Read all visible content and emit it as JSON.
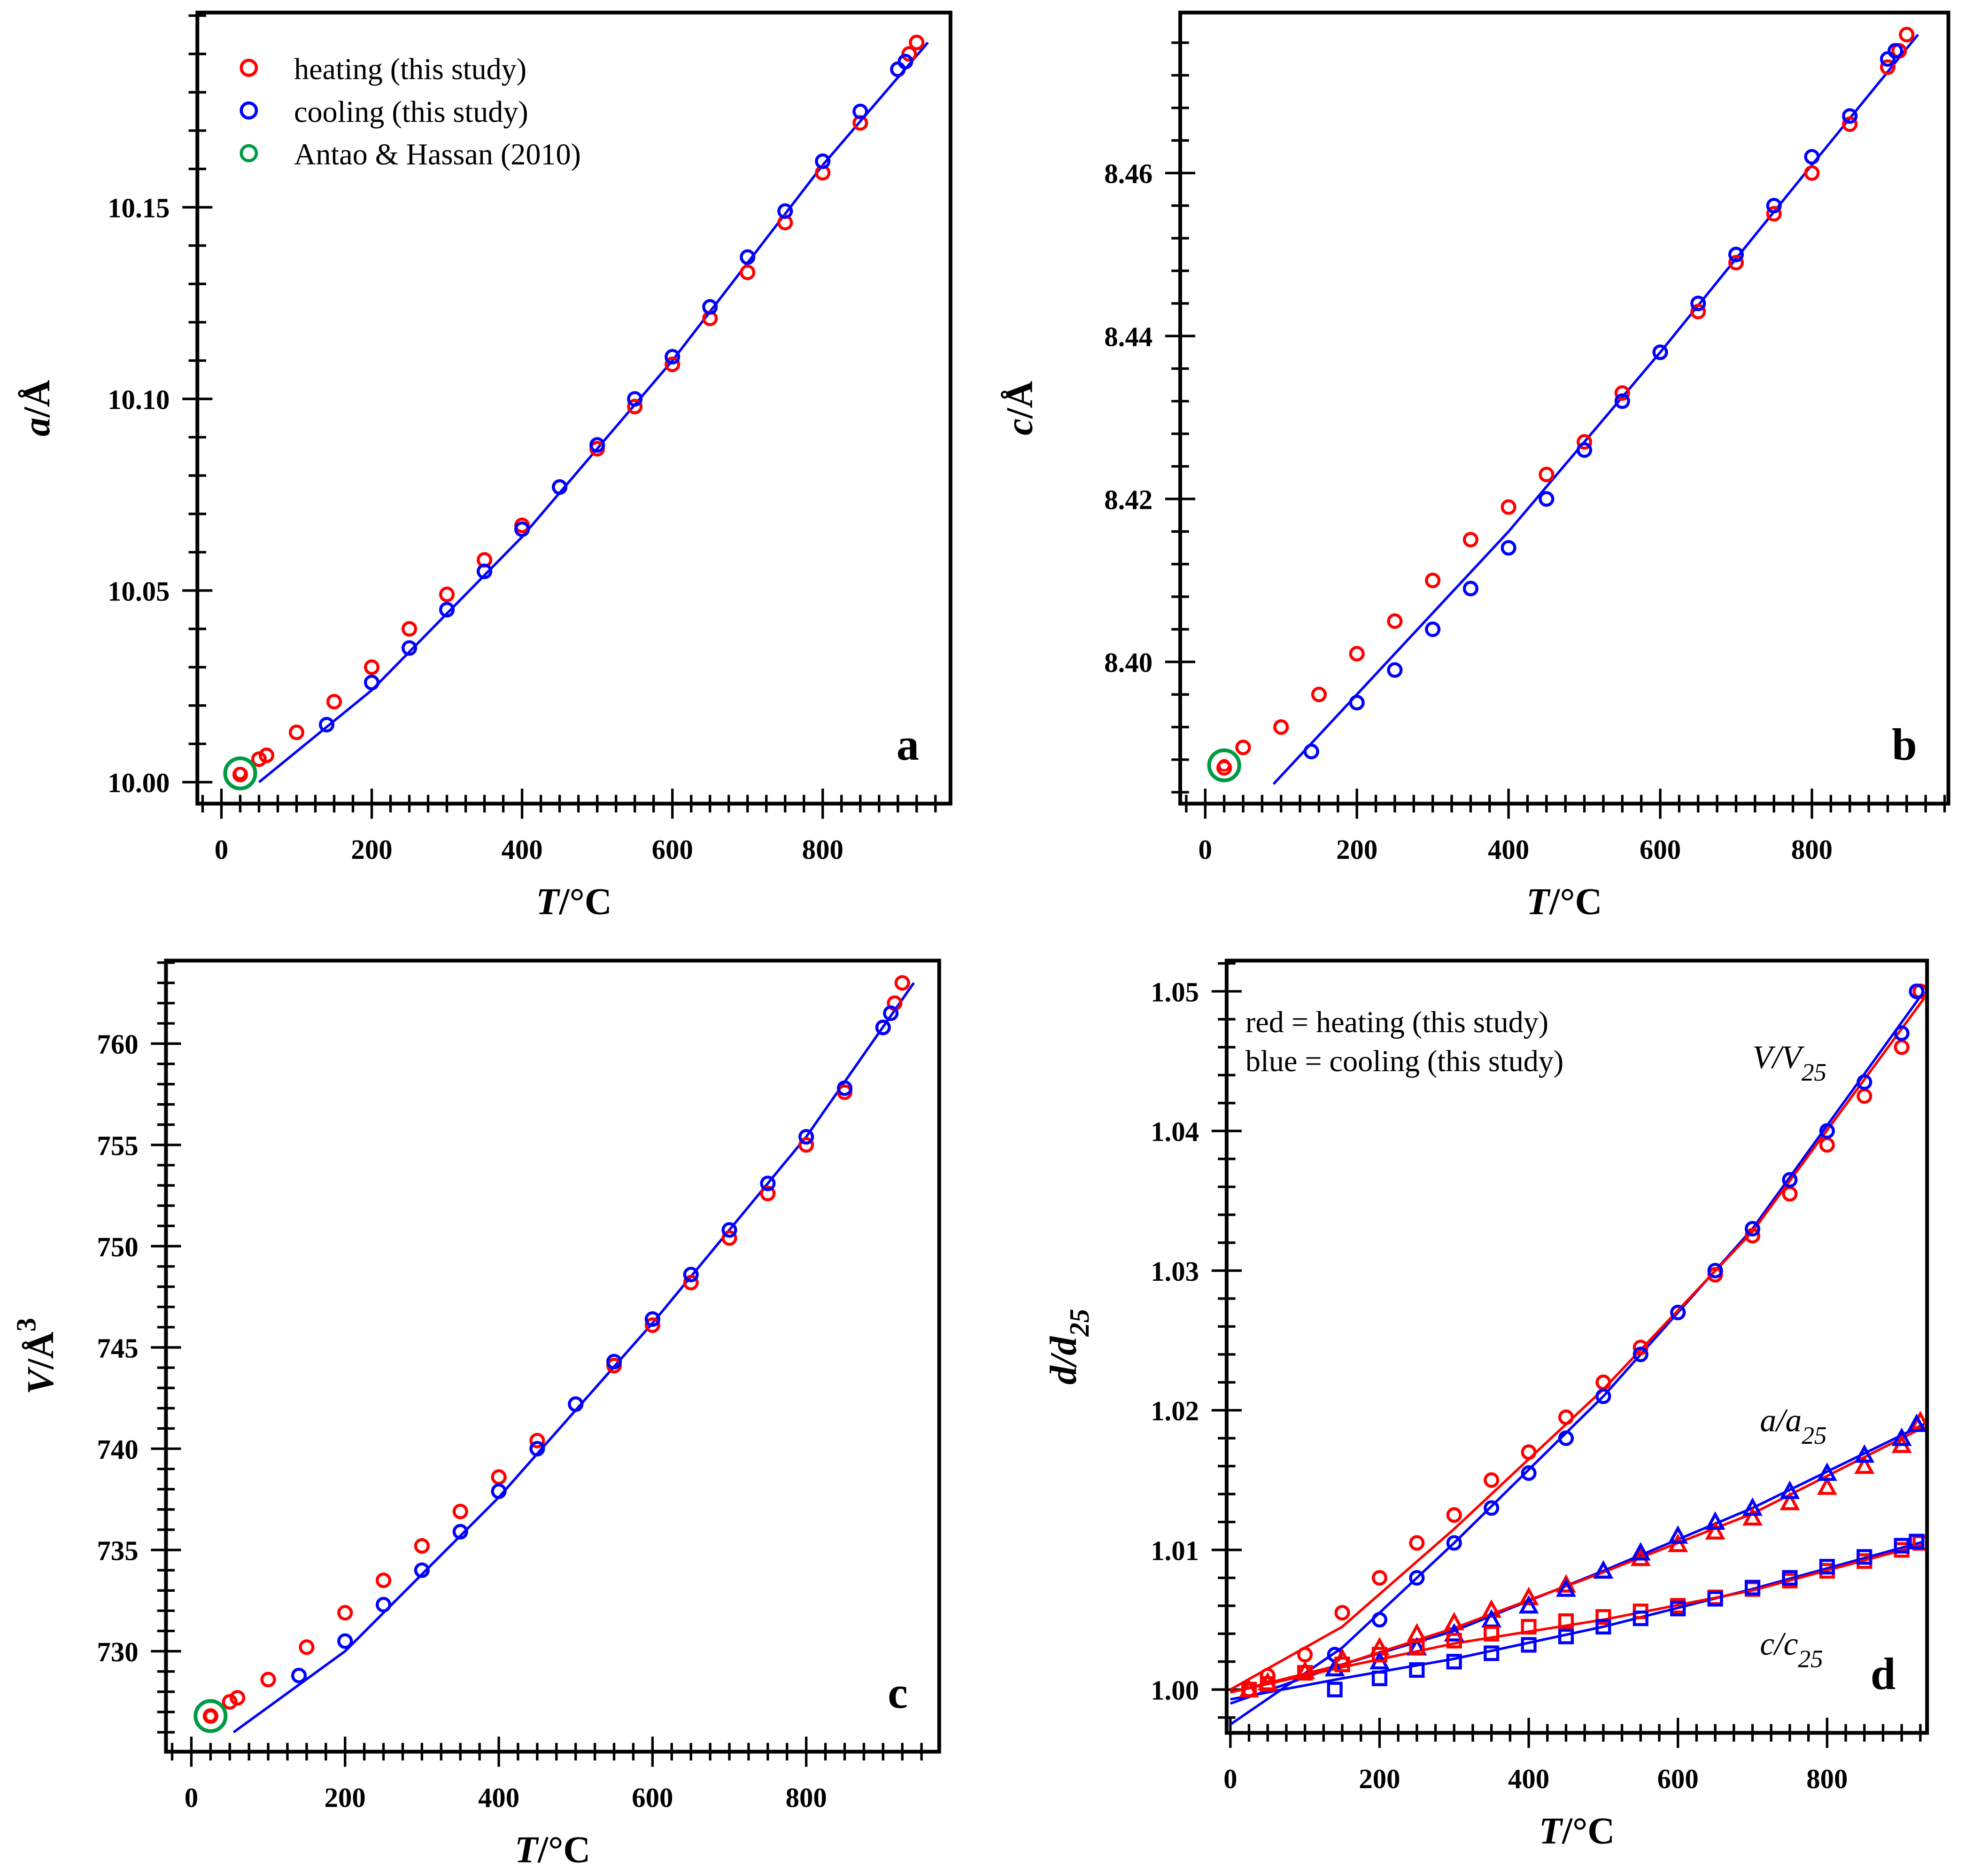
{
  "chart_data": [
    {
      "type": "scatter",
      "panel_label": "b_placeholder_removed",
      "letter": "a",
      "xlabel": {
        "var": "T",
        "unit": "/°C"
      },
      "ylabel": {
        "var": "a",
        "unit": "/Å",
        "sup": "",
        "sub": ""
      },
      "xlim": [
        -32,
        970
      ],
      "ylim": [
        9.9944,
        10.2008
      ],
      "xticks": [
        0,
        200,
        400,
        600,
        800
      ],
      "xtick_labels": [
        "0",
        "200",
        "400",
        "600",
        "800"
      ],
      "xminor": 25,
      "yticks": [
        10.0,
        10.05,
        10.1,
        10.15
      ],
      "ytick_labels": [
        "10.00",
        "10.05",
        "10.10",
        "10.15"
      ],
      "yminor": 0.01,
      "legend": {
        "placement": "top-left",
        "entries": [
          "heating (this study)",
          "cooling (this study)",
          "Antao & Hassan (2010)"
        ]
      },
      "series": [
        {
          "name": "heating (this study)",
          "color": "#ff0000",
          "marker": "circle",
          "x": [
            25,
            50,
            60,
            100,
            150,
            200,
            250,
            300,
            350,
            400,
            450,
            500,
            550,
            600,
            650,
            700,
            750,
            800,
            850,
            900,
            915,
            925
          ],
          "y": [
            10.002,
            10.006,
            10.007,
            10.013,
            10.021,
            10.03,
            10.04,
            10.049,
            10.058,
            10.067,
            10.077,
            10.087,
            10.098,
            10.109,
            10.121,
            10.133,
            10.146,
            10.159,
            10.172,
            10.186,
            10.19,
            10.193
          ]
        },
        {
          "name": "cooling (this study)",
          "color": "#0000ff",
          "marker": "circle",
          "x": [
            140,
            200,
            250,
            300,
            350,
            400,
            450,
            500,
            550,
            600,
            650,
            700,
            750,
            800,
            850,
            900,
            910
          ],
          "y": [
            10.015,
            10.026,
            10.035,
            10.045,
            10.055,
            10.066,
            10.077,
            10.088,
            10.1,
            10.111,
            10.124,
            10.137,
            10.149,
            10.162,
            10.175,
            10.186,
            10.188
          ]
        },
        {
          "name": "Antao & Hassan (2010)",
          "color": "#009a44",
          "marker": "big-circle",
          "x": [
            25
          ],
          "y": [
            10.0023
          ]
        }
      ],
      "fit": {
        "color": "#0000ff",
        "x": [
          50,
          200,
          400,
          600,
          800,
          940
        ],
        "y": [
          10.0,
          10.024,
          10.064,
          10.11,
          10.161,
          10.193
        ]
      }
    },
    {
      "type": "scatter",
      "letter": "b",
      "xlabel": {
        "var": "T",
        "unit": "/°C"
      },
      "ylabel": {
        "var": "c",
        "unit": "/Å",
        "sup": "",
        "sub": ""
      },
      "xlim": [
        -33,
        980
      ],
      "ylim": [
        8.3826,
        8.4797
      ],
      "xticks": [
        0,
        200,
        400,
        600,
        800
      ],
      "xtick_labels": [
        "0",
        "200",
        "400",
        "600",
        "800"
      ],
      "xminor": 25,
      "yticks": [
        8.4,
        8.42,
        8.44,
        8.46
      ],
      "ytick_labels": [
        "8.40",
        "8.42",
        "8.44",
        "8.46"
      ],
      "yminor": 0.004,
      "series": [
        {
          "name": "heating (this study)",
          "color": "#ff0000",
          "marker": "circle",
          "x": [
            25,
            50,
            100,
            150,
            200,
            250,
            300,
            350,
            400,
            450,
            500,
            550,
            600,
            650,
            700,
            750,
            800,
            850,
            900,
            915,
            925
          ],
          "y": [
            8.387,
            8.3895,
            8.392,
            8.396,
            8.401,
            8.405,
            8.41,
            8.415,
            8.419,
            8.423,
            8.427,
            8.433,
            8.438,
            8.443,
            8.449,
            8.455,
            8.46,
            8.466,
            8.473,
            8.475,
            8.477
          ]
        },
        {
          "name": "cooling (this study)",
          "color": "#0000ff",
          "marker": "circle",
          "x": [
            140,
            200,
            250,
            300,
            350,
            400,
            450,
            500,
            550,
            600,
            650,
            700,
            750,
            800,
            850,
            900,
            910
          ],
          "y": [
            8.389,
            8.395,
            8.399,
            8.404,
            8.409,
            8.414,
            8.42,
            8.426,
            8.432,
            8.438,
            8.444,
            8.45,
            8.456,
            8.462,
            8.467,
            8.474,
            8.475
          ]
        },
        {
          "name": "Antao & Hassan (2010)",
          "color": "#009a44",
          "marker": "big-circle",
          "x": [
            25
          ],
          "y": [
            8.3873
          ]
        }
      ],
      "fit": {
        "color": "#0000ff",
        "x": [
          90,
          200,
          400,
          600,
          800,
          940
        ],
        "y": [
          8.385,
          8.396,
          8.416,
          8.438,
          8.461,
          8.477
        ]
      }
    },
    {
      "type": "scatter",
      "letter": "c",
      "xlabel": {
        "var": "T",
        "unit": "/°C"
      },
      "ylabel": {
        "var": "V",
        "unit": "/Å",
        "sup": "3",
        "sub": ""
      },
      "xlim": [
        -33,
        973
      ],
      "ylim": [
        725.04,
        764.1
      ],
      "xticks": [
        0,
        200,
        400,
        600,
        800
      ],
      "xtick_labels": [
        "0",
        "200",
        "400",
        "600",
        "800"
      ],
      "xminor": 25,
      "yticks": [
        730,
        735,
        740,
        745,
        750,
        755,
        760
      ],
      "ytick_labels": [
        "730",
        "735",
        "740",
        "745",
        "750",
        "755",
        "760"
      ],
      "yminor": 1,
      "series": [
        {
          "name": "heating (this study)",
          "color": "#ff0000",
          "marker": "circle",
          "x": [
            25,
            50,
            60,
            100,
            150,
            200,
            250,
            300,
            350,
            400,
            450,
            500,
            550,
            600,
            650,
            700,
            750,
            800,
            850,
            900,
            915,
            925
          ],
          "y": [
            726.8,
            727.5,
            727.7,
            728.6,
            730.2,
            731.9,
            733.5,
            735.2,
            736.9,
            738.6,
            740.4,
            742.2,
            744.1,
            746.1,
            748.2,
            750.4,
            752.6,
            755.0,
            757.6,
            760.8,
            762.0,
            763.0
          ]
        },
        {
          "name": "cooling (this study)",
          "color": "#0000ff",
          "marker": "circle",
          "x": [
            140,
            200,
            250,
            300,
            350,
            400,
            450,
            500,
            550,
            600,
            650,
            700,
            750,
            800,
            850,
            900,
            910
          ],
          "y": [
            728.8,
            730.5,
            732.3,
            734.0,
            735.9,
            737.9,
            740.0,
            742.2,
            744.3,
            746.4,
            748.6,
            750.8,
            753.1,
            755.4,
            757.8,
            760.8,
            761.5
          ]
        },
        {
          "name": "Antao & Hassan (2010)",
          "color": "#009a44",
          "marker": "big-circle",
          "x": [
            25
          ],
          "y": [
            726.8
          ]
        }
      ],
      "fit": {
        "color": "#0000ff",
        "x": [
          55,
          200,
          400,
          600,
          800,
          940
        ],
        "y": [
          726.0,
          730.0,
          737.6,
          746.2,
          755.4,
          763.0
        ]
      }
    },
    {
      "type": "scatter",
      "letter": "d",
      "xlabel": {
        "var": "T",
        "unit": "/°C"
      },
      "ylabel": {
        "var": "d",
        "unit": "/d",
        "sup": "",
        "sub": "25"
      },
      "xlim": [
        -5,
        934
      ],
      "ylim": [
        0.9969,
        1.0522
      ],
      "xticks": [
        0,
        200,
        400,
        600,
        800
      ],
      "xtick_labels": [
        "0",
        "200",
        "400",
        "600",
        "800"
      ],
      "xminor": 25,
      "yticks": [
        1.0,
        1.01,
        1.02,
        1.03,
        1.04,
        1.05
      ],
      "ytick_labels": [
        "1.00",
        "1.01",
        "1.02",
        "1.03",
        "1.04",
        "1.05"
      ],
      "yminor": 0.002,
      "notes": [
        "red = heating  (this study)",
        "blue = cooling  (this study)"
      ],
      "curve_labels": [
        {
          "main": "V/V",
          "sub": "25",
          "at_x": 700,
          "at_y": 1.0445
        },
        {
          "main": "a/a",
          "sub": "25",
          "at_x": 710,
          "at_y": 1.0185
        },
        {
          "main": "c/c",
          "sub": "25",
          "at_x": 710,
          "at_y": 1.0025
        }
      ],
      "series": [
        {
          "name": "V/V25 heating",
          "color": "#ff0000",
          "marker": "circle",
          "x": [
            25,
            50,
            100,
            150,
            200,
            250,
            300,
            350,
            400,
            450,
            500,
            550,
            600,
            650,
            700,
            750,
            800,
            850,
            900,
            925
          ],
          "y": [
            1.0,
            1.001,
            1.0025,
            1.0055,
            1.008,
            1.0105,
            1.0125,
            1.015,
            1.017,
            1.0195,
            1.022,
            1.0245,
            1.027,
            1.0297,
            1.0325,
            1.0355,
            1.039,
            1.0425,
            1.046,
            1.05
          ]
        },
        {
          "name": "V/V25 cooling",
          "color": "#0000ff",
          "marker": "circle",
          "x": [
            140,
            200,
            250,
            300,
            350,
            400,
            450,
            500,
            550,
            600,
            650,
            700,
            750,
            800,
            850,
            900,
            920
          ],
          "y": [
            1.0025,
            1.005,
            1.008,
            1.0105,
            1.013,
            1.0155,
            1.018,
            1.021,
            1.024,
            1.027,
            1.03,
            1.033,
            1.0365,
            1.04,
            1.0435,
            1.047,
            1.05
          ]
        },
        {
          "name": "a/a25 heating",
          "color": "#ff0000",
          "marker": "triangle",
          "x": [
            25,
            50,
            100,
            150,
            200,
            250,
            300,
            350,
            400,
            450,
            500,
            550,
            600,
            650,
            700,
            750,
            800,
            850,
            900,
            925
          ],
          "y": [
            1.0,
            1.0005,
            1.0013,
            1.0022,
            1.003,
            1.004,
            1.0048,
            1.0057,
            1.0066,
            1.0075,
            1.0085,
            1.0094,
            1.0104,
            1.0113,
            1.0123,
            1.0134,
            1.0145,
            1.016,
            1.0175,
            1.0192
          ]
        },
        {
          "name": "a/a25 cooling",
          "color": "#0000ff",
          "marker": "triangle",
          "x": [
            140,
            200,
            250,
            300,
            350,
            400,
            450,
            500,
            550,
            600,
            650,
            700,
            750,
            800,
            850,
            900,
            920
          ],
          "y": [
            1.0015,
            1.002,
            1.003,
            1.004,
            1.005,
            1.006,
            1.0072,
            1.0085,
            1.0098,
            1.011,
            1.012,
            1.013,
            1.0142,
            1.0155,
            1.0168,
            1.018,
            1.019
          ]
        },
        {
          "name": "c/c25 heating",
          "color": "#ff0000",
          "marker": "square",
          "x": [
            25,
            50,
            100,
            150,
            200,
            250,
            300,
            350,
            400,
            450,
            500,
            550,
            600,
            650,
            700,
            750,
            800,
            850,
            900,
            925
          ],
          "y": [
            1.0,
            1.0004,
            1.0012,
            1.0018,
            1.0025,
            1.003,
            1.0035,
            1.004,
            1.0045,
            1.0049,
            1.0052,
            1.0056,
            1.006,
            1.0066,
            1.0072,
            1.0078,
            1.0085,
            1.0092,
            1.01,
            1.0105
          ]
        },
        {
          "name": "c/c25 cooling",
          "color": "#0000ff",
          "marker": "square",
          "x": [
            140,
            200,
            250,
            300,
            350,
            400,
            450,
            500,
            550,
            600,
            650,
            700,
            750,
            800,
            850,
            900,
            920
          ],
          "y": [
            1.0,
            1.0008,
            1.0014,
            1.002,
            1.0026,
            1.0032,
            1.0038,
            1.0045,
            1.0051,
            1.0058,
            1.0065,
            1.0073,
            1.008,
            1.0088,
            1.0095,
            1.0103,
            1.0106
          ]
        }
      ],
      "fits": [
        {
          "color": "#0000ff",
          "x": [
            0,
            150,
            300,
            500,
            700,
            930
          ],
          "y": [
            0.9975,
            1.003,
            1.0105,
            1.021,
            1.033,
            1.05
          ]
        },
        {
          "color": "#ff0000",
          "x": [
            0,
            150,
            300,
            500,
            700,
            930
          ],
          "y": [
            1.0,
            1.0045,
            1.0115,
            1.0215,
            1.0328,
            1.0495
          ]
        },
        {
          "color": "#0000ff",
          "x": [
            0,
            150,
            300,
            500,
            700,
            930
          ],
          "y": [
            0.999,
            1.0018,
            1.0042,
            1.0085,
            1.013,
            1.019
          ]
        },
        {
          "color": "#ff0000",
          "x": [
            0,
            150,
            300,
            500,
            700,
            930
          ],
          "y": [
            0.9998,
            1.0018,
            1.0044,
            1.0084,
            1.0126,
            1.0188
          ]
        },
        {
          "color": "#0000ff",
          "x": [
            0,
            150,
            300,
            500,
            700,
            930
          ],
          "y": [
            0.9993,
            1.0008,
            1.0022,
            1.0045,
            1.0072,
            1.0106
          ]
        },
        {
          "color": "#ff0000",
          "x": [
            0,
            150,
            300,
            500,
            700,
            930
          ],
          "y": [
            0.9998,
            1.0016,
            1.0033,
            1.005,
            1.0071,
            1.0104
          ]
        }
      ]
    }
  ]
}
